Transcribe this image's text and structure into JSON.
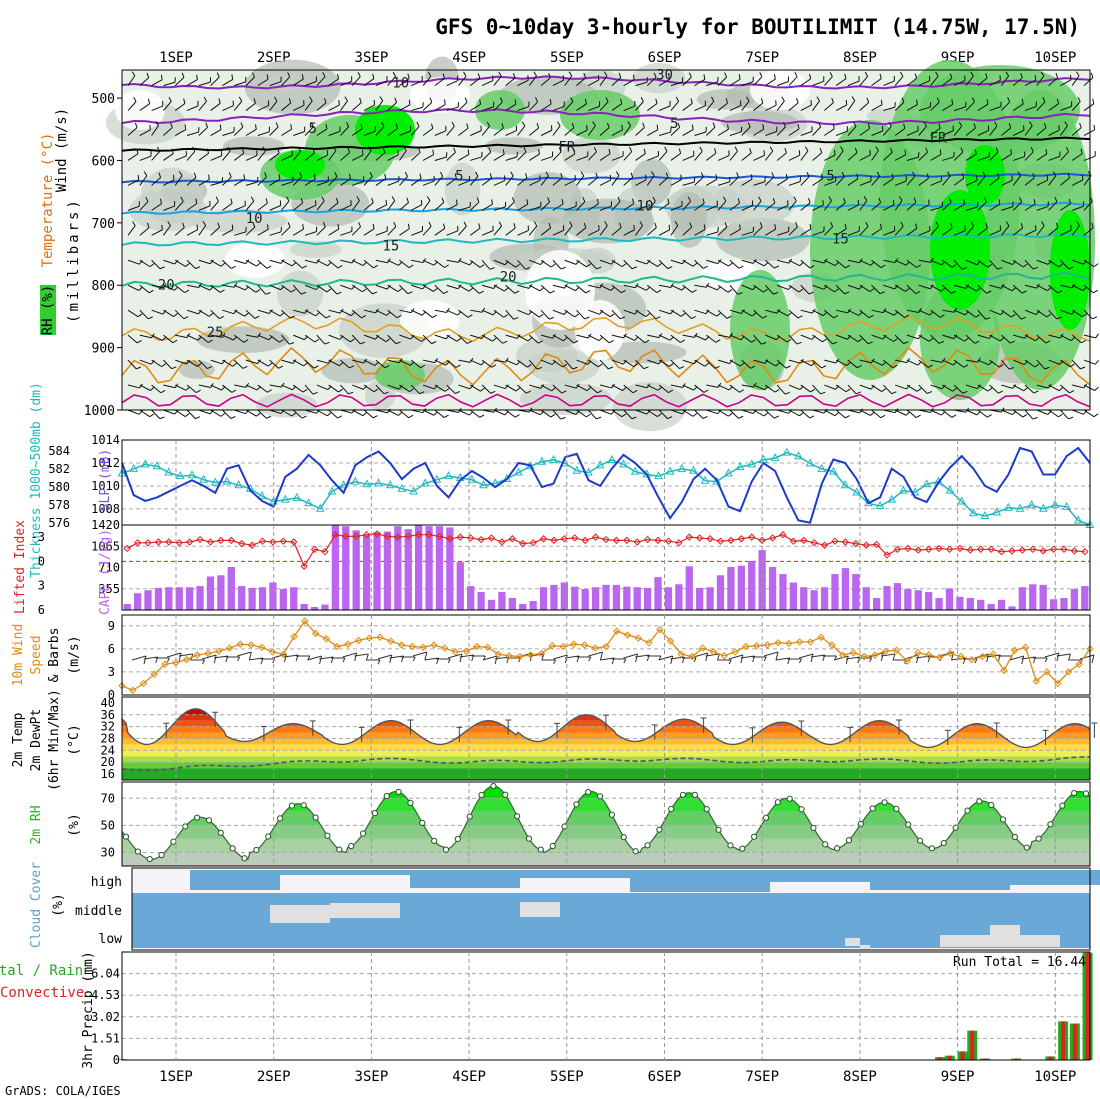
{
  "title": "GFS 0~10day 3-hourly for BOUTILIMIT (14.75W, 17.5N)",
  "credit": "GrADS: COLA/IGES",
  "dates": [
    "1SEP",
    "2SEP",
    "3SEP",
    "4SEP",
    "5SEP",
    "6SEP",
    "7SEP",
    "8SEP",
    "9SEP",
    "10SEP"
  ],
  "colors": {
    "cyan": "#20b8c0",
    "blue": "#1a3cc8",
    "purple": "#bb66ee",
    "red": "#dd2222",
    "orange": "#e08a10",
    "green": "#22bb22",
    "rhgreen": "#00ee00",
    "cloud": "#6aa8d8",
    "magenta": "#cc0088",
    "contourPurple": "#8822bb"
  },
  "panels": {
    "profile": {
      "label_wind": "Wind (m/s)",
      "label_temp": "Temperature (°C)",
      "label_rh": "RH (%)",
      "label_axis": "(millibars)",
      "levels": [
        500,
        600,
        700,
        800,
        900,
        1000
      ],
      "temp_labels": [
        {
          "text": "10",
          "p": 475,
          "day": 3.3
        },
        {
          "text": "5",
          "p": 548,
          "day": 2.4
        },
        {
          "text": "5",
          "p": 540,
          "day": 6.1
        },
        {
          "text": "FR",
          "p": 578,
          "day": 5.0
        },
        {
          "text": "FR",
          "p": 563,
          "day": 8.8
        },
        {
          "text": "5",
          "p": 624,
          "day": 3.9
        },
        {
          "text": "5",
          "p": 624,
          "day": 7.7
        },
        {
          "text": "10",
          "p": 692,
          "day": 1.8
        },
        {
          "text": "10",
          "p": 672,
          "day": 5.8
        },
        {
          "text": "15",
          "p": 736,
          "day": 3.2
        },
        {
          "text": "15",
          "p": 725,
          "day": 7.8
        },
        {
          "text": "20",
          "p": 786,
          "day": 4.4
        },
        {
          "text": "20",
          "p": 799,
          "day": 0.9
        },
        {
          "text": "25",
          "p": 875,
          "day": 1.4
        },
        {
          "text": "30",
          "p": 462,
          "day": 6.0
        }
      ]
    },
    "slp": {
      "label_thick": "Thickness 1000~500mb (dm)",
      "label_slp": "SLP (mb)",
      "left_ticks": [
        "576",
        "578",
        "580",
        "582",
        "584"
      ],
      "right_ticks": [
        "1008",
        "1010",
        "1012",
        "1014"
      ],
      "slp_range": [
        1006.6,
        1014.0
      ],
      "thick_range": [
        575.8,
        585.2
      ],
      "slp": [
        1012.0,
        1009.2,
        1008.7,
        1009.0,
        1009.5,
        1010.0,
        1010.5,
        1010.0,
        1009.4,
        1011.5,
        1011.8,
        1009.6,
        1008.7,
        1008.2,
        1010.8,
        1011.5,
        1012.7,
        1011.8,
        1010.5,
        1009.4,
        1011.8,
        1012.5,
        1013.0,
        1012.0,
        1010.6,
        1011.5,
        1012.0,
        1010.0,
        1009.0,
        1010.5,
        1011.3,
        1010.7,
        1009.9,
        1010.6,
        1012.0,
        1011.8,
        1009.9,
        1010.2,
        1012.5,
        1012.8,
        1010.5,
        1010.0,
        1011.5,
        1012.7,
        1012.0,
        1011.0,
        1009.0,
        1007.2,
        1008.6,
        1010.6,
        1011.5,
        1010.5,
        1008.2,
        1007.8,
        1010.4,
        1012.0,
        1011.3,
        1009.0,
        1007.0,
        1006.8,
        1010.2,
        1012.3,
        1012.0,
        1010.6,
        1008.5,
        1009.0,
        1011.5,
        1010.8,
        1009.0,
        1008.6,
        1010.3,
        1011.6,
        1012.6,
        1011.5,
        1010.0,
        1009.5,
        1011.0,
        1013.3,
        1013.0,
        1011.0,
        1011.0,
        1012.6,
        1013.3,
        1012.0
      ],
      "thick": [
        581.5,
        582.0,
        582.5,
        582.3,
        581.6,
        581.2,
        581.3,
        580.8,
        580.5,
        580.6,
        580.2,
        579.8,
        579.0,
        578.4,
        578.6,
        578.8,
        578.2,
        577.6,
        579.5,
        580.2,
        580.6,
        580.3,
        580.4,
        580.2,
        579.8,
        579.5,
        580.4,
        580.8,
        581.2,
        581.0,
        580.8,
        580.2,
        580.4,
        580.9,
        581.6,
        582.3,
        582.8,
        583.0,
        582.6,
        581.8,
        581.6,
        582.4,
        583.0,
        582.5,
        581.7,
        581.4,
        581.2,
        581.7,
        582.0,
        581.8,
        580.7,
        580.6,
        581.5,
        582.2,
        582.5,
        583.0,
        583.2,
        583.8,
        583.4,
        582.6,
        582.0,
        581.7,
        580.2,
        579.4,
        578.2,
        577.9,
        578.6,
        579.6,
        579.4,
        580.3,
        580.6,
        579.6,
        578.4,
        577.1,
        576.8,
        577.2,
        577.7,
        577.6,
        578.0,
        577.6,
        578.0,
        577.8,
        576.3,
        575.8
      ]
    },
    "cape": {
      "label_li": "Lifted Index",
      "label_cape": "CAPE (J/kg)",
      "left_ticks": [
        "-3",
        "0",
        "3",
        "6"
      ],
      "right_ticks": [
        "355",
        "710",
        "1065",
        "1420"
      ],
      "cape": [
        100,
        280,
        330,
        370,
        380,
        380,
        380,
        400,
        560,
        580,
        720,
        400,
        370,
        380,
        460,
        350,
        380,
        100,
        50,
        90,
        1420,
        1400,
        1330,
        1250,
        1300,
        1310,
        1400,
        1350,
        1420,
        1400,
        1400,
        1380,
        800,
        400,
        300,
        170,
        300,
        200,
        100,
        150,
        380,
        420,
        460,
        390,
        350,
        380,
        420,
        420,
        390,
        380,
        370,
        550,
        380,
        430,
        730,
        370,
        380,
        580,
        720,
        740,
        820,
        1000,
        720,
        600,
        460,
        380,
        330,
        380,
        600,
        700,
        600,
        380,
        200,
        400,
        450,
        350,
        330,
        300,
        200,
        360,
        220,
        200,
        170,
        100,
        170,
        60,
        380,
        430,
        420,
        180,
        200,
        350,
        400
      ],
      "li": [
        -1.6,
        -2.3,
        -2.3,
        -2.4,
        -2.4,
        -2.3,
        -2.4,
        -2.7,
        -2.4,
        -2.6,
        -2.6,
        -2.2,
        -2.0,
        -2.5,
        -2.4,
        -2.5,
        -2.4,
        0.6,
        -1.5,
        -1.2,
        -3.3,
        -3.1,
        -3.1,
        -3.3,
        -3.4,
        -3.1,
        -3.0,
        -3.1,
        -3.3,
        -3.3,
        -3.1,
        -2.8,
        -3.0,
        -2.9,
        -2.7,
        -2.9,
        -2.4,
        -2.8,
        -2.2,
        -2.3,
        -2.8,
        -2.6,
        -2.8,
        -2.9,
        -2.6,
        -3.0,
        -2.7,
        -2.6,
        -2.6,
        -2.4,
        -2.7,
        -2.6,
        -2.5,
        -2.3,
        -3.0,
        -2.9,
        -2.8,
        -2.5,
        -2.6,
        -2.8,
        -3.0,
        -2.6,
        -2.9,
        -3.3,
        -2.5,
        -2.6,
        -2.3,
        -2.0,
        -2.5,
        -2.4,
        -2.2,
        -2.0,
        -2.1,
        -0.8,
        -1.5,
        -1.6,
        -1.4,
        -1.5,
        -1.6,
        -1.5,
        -1.6,
        -1.4,
        -1.5,
        -1.5,
        -1.2,
        -1.3,
        -1.4,
        -1.5,
        -1.3,
        -1.5,
        -1.5,
        -1.3,
        -1.2
      ]
    },
    "wind10m": {
      "label_wind": "10m Wind",
      "label_speed": "Speed",
      "label_barbs": "& Barbs",
      "label_unit": "(m/s)",
      "ticks": [
        "0",
        "3",
        "6",
        "9"
      ],
      "speed": [
        1.2,
        0.6,
        1.5,
        2.7,
        4.0,
        4.2,
        4.6,
        5.2,
        5.4,
        5.7,
        6.1,
        6.6,
        6.5,
        6.2,
        5.6,
        5.3,
        7.6,
        9.6,
        8.0,
        7.3,
        6.3,
        6.6,
        7.1,
        7.4,
        7.5,
        7.0,
        6.5,
        6.3,
        6.2,
        6.5,
        6.1,
        5.6,
        5.7,
        6.3,
        6.2,
        5.3,
        5.1,
        5.0,
        5.2,
        5.4,
        6.4,
        6.3,
        6.6,
        6.5,
        6.1,
        6.3,
        8.3,
        7.8,
        7.4,
        6.8,
        8.5,
        7.0,
        5.3,
        5.0,
        6.1,
        5.6,
        5.1,
        5.6,
        6.3,
        6.4,
        6.5,
        6.8,
        6.7,
        6.9,
        6.9,
        7.5,
        6.5,
        5.2,
        5.5,
        5.0,
        5.2,
        5.7,
        5.8,
        4.4,
        5.5,
        5.2,
        4.9,
        5.4,
        5.0,
        4.6,
        5.0,
        5.3,
        3.2,
        5.8,
        6.2,
        1.8,
        3.0,
        1.5,
        3.0,
        4.0,
        6.0
      ]
    },
    "temp2m": {
      "label_a": "2m Temp",
      "label_b": "2m DewPt",
      "label_c": "(6hr Min/Max)",
      "label_unit": "(°C)",
      "ticks": [
        "16",
        "20",
        "24",
        "28",
        "32",
        "36",
        "40"
      ],
      "peaks": [
        40.0,
        38.0,
        33.0,
        34.0,
        34.0,
        36.0,
        34.5,
        33.5,
        34.0,
        33.0
      ],
      "troughs": [
        29,
        26,
        27,
        26,
        26,
        27,
        27,
        26,
        26,
        25
      ],
      "dew": [
        17.2,
        18.0,
        19.5,
        21.0,
        20.0,
        20.5,
        21.0,
        20.2,
        20.8,
        20.0,
        21.0
      ]
    },
    "rh2m": {
      "label_a": "2m RH",
      "label_unit": "(%)",
      "ticks": [
        "30",
        "50",
        "70"
      ],
      "peaks": [
        56,
        66,
        75,
        79,
        75,
        74,
        70,
        67,
        68,
        75
      ],
      "troughs": [
        25,
        30,
        34,
        32,
        30,
        33,
        32,
        33,
        33,
        38
      ]
    },
    "cloud": {
      "label_a": "Cloud Cover",
      "label_unit": "(%)",
      "levels": [
        "high",
        "middle",
        "low"
      ]
    },
    "precip": {
      "label_a": "Total / Rain",
      "label_b": "Convective",
      "label_axis": "3hr Precip (mm)",
      "ticks": [
        "0",
        "1.51",
        "3.02",
        "4.53",
        "6.04"
      ],
      "run_total": "Run Total = 16.44",
      "bars": [
        {
          "day": 0.45,
          "total": 0.05
        },
        {
          "day": 8.82,
          "total": 0.2
        },
        {
          "day": 8.92,
          "total": 0.3
        },
        {
          "day": 9.05,
          "total": 0.6
        },
        {
          "day": 9.15,
          "total": 2.05
        },
        {
          "day": 9.28,
          "total": 0.1
        },
        {
          "day": 9.6,
          "total": 0.1
        },
        {
          "day": 9.95,
          "total": 0.25
        },
        {
          "day": 10.08,
          "total": 2.7
        },
        {
          "day": 10.2,
          "total": 2.55
        },
        {
          "day": 10.33,
          "total": 7.5
        }
      ]
    }
  },
  "chart_data": [
    {
      "type": "line",
      "title": "GFS 0~10day 3-hourly for BOUTILIMIT (14.75W, 17.5N)",
      "series": [
        {
          "name": "SLP (mb)",
          "ref": "panels.slp.slp"
        },
        {
          "name": "Thickness 1000~500mb (dm)",
          "ref": "panels.slp.thick"
        }
      ],
      "ylim_left": [
        576,
        584
      ],
      "ylim_right": [
        1006.6,
        1014
      ]
    },
    {
      "type": "bar",
      "series": [
        {
          "name": "CAPE (J/kg)",
          "ref": "panels.cape.cape"
        },
        {
          "name": "Lifted Index",
          "ref": "panels.cape.li"
        }
      ],
      "ylim": [
        0,
        1420
      ]
    },
    {
      "type": "line",
      "series": [
        {
          "name": "10m Wind Speed",
          "ref": "panels.wind10m.speed"
        }
      ],
      "ylim": [
        0,
        10
      ]
    },
    {
      "type": "area",
      "series": [
        {
          "name": "2m Temp",
          "ref": "panels.temp2m"
        }
      ],
      "ylim": [
        14,
        42
      ]
    },
    {
      "type": "area",
      "series": [
        {
          "name": "2m RH",
          "ref": "panels.rh2m"
        }
      ],
      "ylim": [
        20,
        80
      ]
    },
    {
      "type": "bar",
      "series": [
        {
          "name": "3hr Precip (mm)",
          "ref": "panels.precip.bars"
        }
      ],
      "ylim": [
        0,
        7.55
      ]
    }
  ]
}
